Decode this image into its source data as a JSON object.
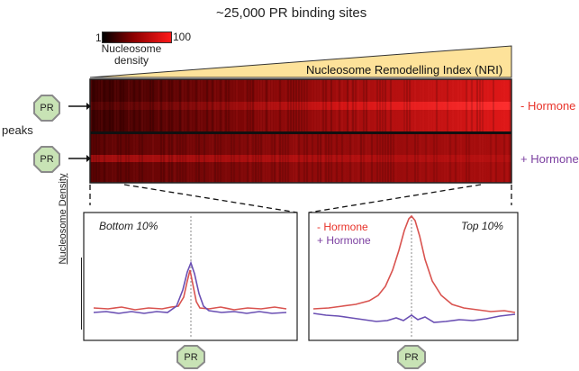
{
  "title": "~25,000 PR binding sites",
  "scale": {
    "min": "1",
    "max": "100",
    "caption": "Nucleosome density"
  },
  "nri_label": "Nucleosome Remodelling Index (NRI)",
  "peaks_label": "peaks",
  "pr_label": "PR",
  "heatmap": {
    "rows": [
      {
        "label": "- Hormone",
        "color": "#e8332a"
      },
      {
        "label": "+ Hormone",
        "color": "#7b3fa0"
      }
    ]
  },
  "panels": {
    "bottom": {
      "title": "Bottom 10%"
    },
    "top": {
      "title": "Top 10%"
    }
  },
  "legend": [
    {
      "label": "-   Hormone",
      "color": "#e8332a"
    },
    {
      "label": "+  Hormone",
      "color": "#7b3fa0"
    }
  ],
  "ylabel": "Nucleosome Density",
  "colors": {
    "minus_hormone": "#d9534f",
    "plus_hormone": "#6a4fb3",
    "pr_fill": "#c8e3b5",
    "pr_stroke": "#8a8a8a",
    "nri_fill": "#fde29a"
  }
}
